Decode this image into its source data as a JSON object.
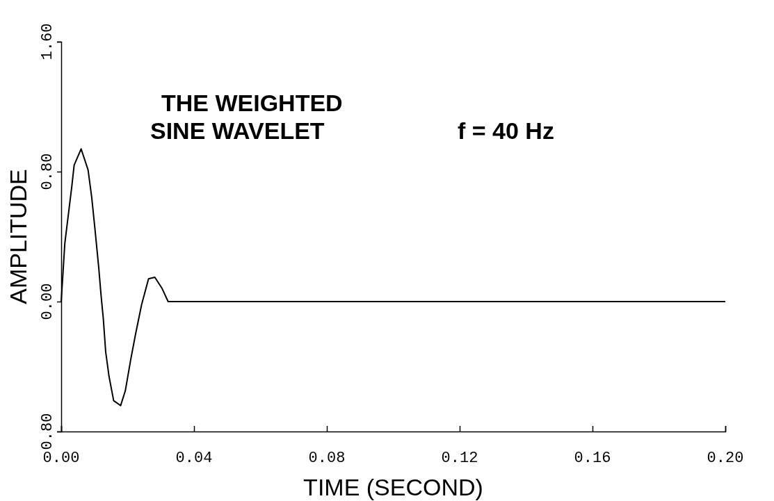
{
  "chart_data": {
    "type": "line",
    "title": "THE WEIGHTED SINE WAVELET",
    "xlabel": "TIME (SECOND)",
    "ylabel": "AMPLITUDE",
    "annotations": [
      "f = 40 Hz"
    ],
    "series": [
      {
        "color": "#000000",
        "x": [
          0,
          0.0011,
          0.0032,
          0.0039,
          0.006,
          0.0081,
          0.0092,
          0.0102,
          0.0113,
          0.012,
          0.0127,
          0.0134,
          0.0144,
          0.0158,
          0.0179,
          0.0193,
          0.021,
          0.0224,
          0.0242,
          0.0263,
          0.0282,
          0.0304,
          0.0322,
          0.2
        ],
        "values": [
          0,
          0.36,
          0.71,
          0.84,
          0.94,
          0.81,
          0.64,
          0.44,
          0.21,
          0.04,
          -0.11,
          -0.31,
          -0.46,
          -0.61,
          -0.64,
          -0.55,
          -0.35,
          -0.2,
          -0.02,
          0.14,
          0.15,
          0.08,
          0,
          0
        ]
      }
    ],
    "xlim": [
      0,
      0.2
    ],
    "xticks": [
      {
        "value": 0,
        "label": "0.00"
      },
      {
        "value": 0.04,
        "label": "0.04"
      },
      {
        "value": 0.08,
        "label": "0.08"
      },
      {
        "value": 0.12,
        "label": "0.12"
      },
      {
        "value": 0.16,
        "label": "0.16"
      },
      {
        "value": 0.2,
        "label": "0.20"
      }
    ],
    "ylim": [
      -0.8,
      1.6
    ],
    "yticks": [
      {
        "value": -0.8,
        "label": "0.80"
      },
      {
        "value": 0,
        "label": "0.00"
      },
      {
        "value": 0.8,
        "label": "0.80"
      },
      {
        "value": 1.6,
        "label": "1.60"
      }
    ],
    "grid": false,
    "marker": "none",
    "line_style": "solid"
  }
}
